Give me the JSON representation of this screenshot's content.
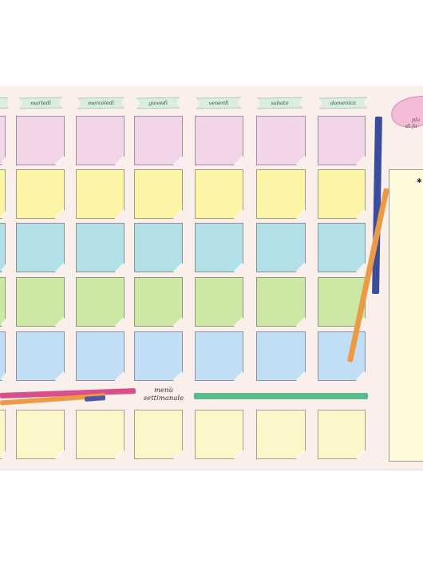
{
  "planner": {
    "days": [
      "martedì",
      "mercoledì",
      "giovedì",
      "venerdì",
      "sabato",
      "domenica"
    ],
    "menu_title_line1": "menù",
    "menu_title_line2": "settimanale",
    "sidebar_text_line1": "pla",
    "sidebar_text_line2": "di fa",
    "sidebar_mark": "✱"
  },
  "colors": {
    "board": "#fbefec",
    "row_pink": "#f2d5e9",
    "row_yellow": "#fbf4a6",
    "row_teal": "#b3dfe7",
    "row_green": "#cde7a4",
    "row_blue": "#c2def5",
    "row_cream": "#fdf6c8",
    "ribbon": "#d9eedc",
    "heart": "#f4bcd7"
  }
}
